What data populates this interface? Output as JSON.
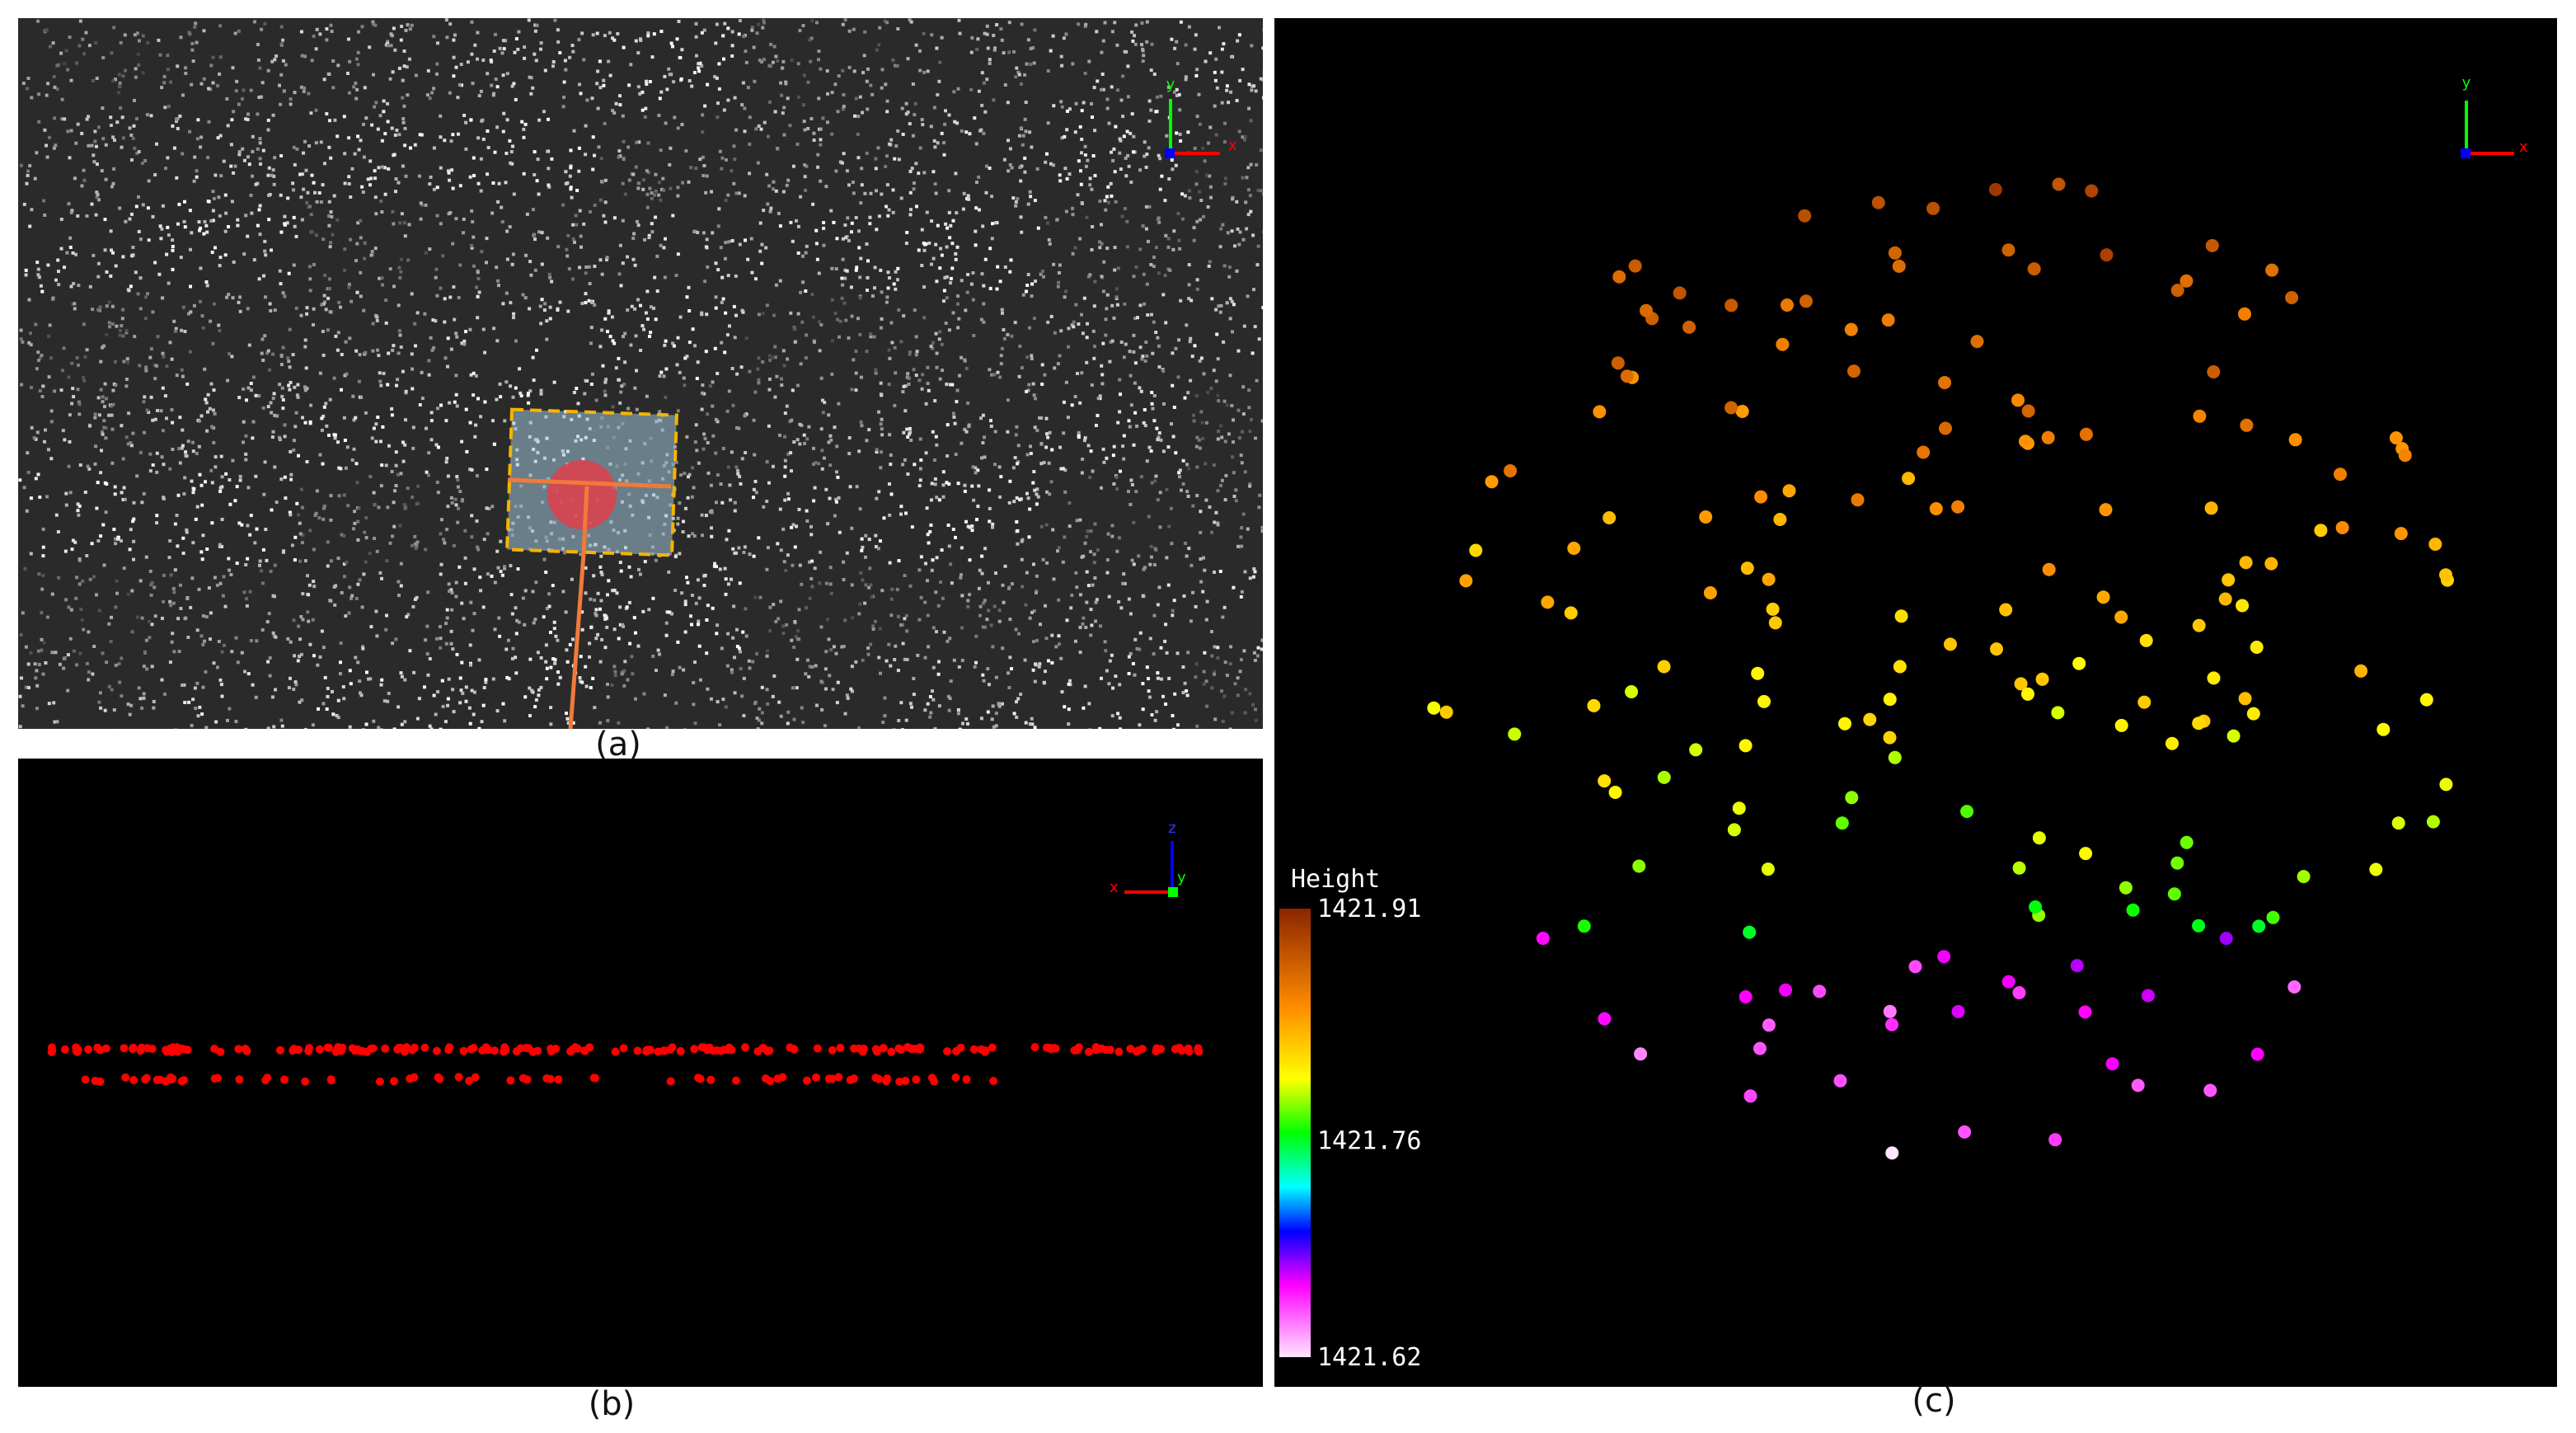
{
  "panels": {
    "a": {
      "caption": "(a)",
      "axis_labels": [
        "y",
        "x"
      ]
    },
    "b": {
      "caption": "(b)",
      "axis_labels": [
        "z",
        "x",
        "y"
      ]
    },
    "c": {
      "caption": "(c)",
      "axis_labels": [
        "y",
        "x"
      ],
      "colorbar": {
        "title": "Height",
        "ticks": [
          1421.91,
          1421.76,
          1421.62
        ]
      }
    }
  }
}
